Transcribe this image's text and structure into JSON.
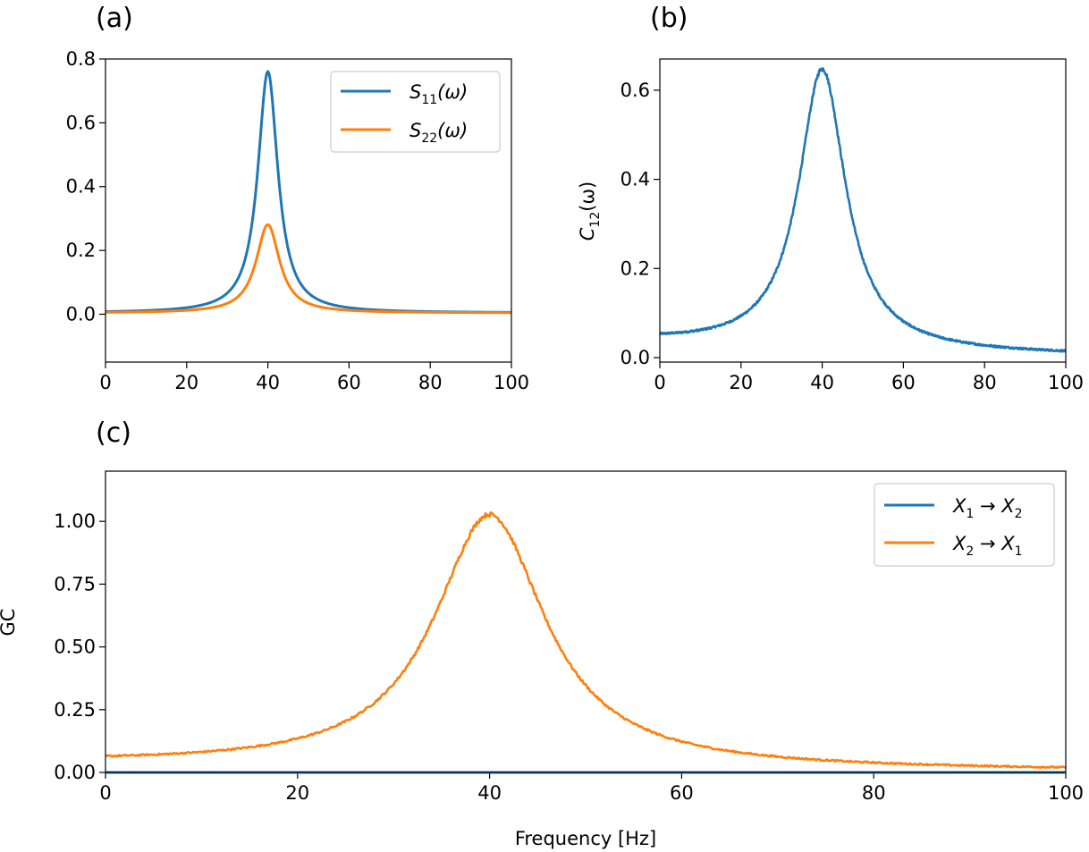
{
  "chart_data": [
    {
      "id": "a",
      "panel_label": "(a)",
      "type": "line",
      "xlim": [
        0,
        100
      ],
      "ylim": [
        -0.15,
        0.8
      ],
      "xticks": [
        0,
        20,
        40,
        60,
        80,
        100
      ],
      "yticks": [
        0.0,
        0.2,
        0.4,
        0.6,
        0.8
      ],
      "xtick_labels": [
        "0",
        "20",
        "40",
        "60",
        "80",
        "100"
      ],
      "ytick_labels": [
        "0.0",
        "0.2",
        "0.4",
        "0.6",
        "0.8"
      ],
      "xlabel": "",
      "ylabel": "",
      "legend": "top-right",
      "series": [
        {
          "name": "S11(ω)",
          "label_main": "S",
          "label_sub": "11",
          "label_tail": "(ω)",
          "color": "#1f77b4",
          "peak_x": 40,
          "peak": 0.757,
          "width": 3.0,
          "baseline": 0.004,
          "noise": 0
        },
        {
          "name": "S22(ω)",
          "label_main": "S",
          "label_sub": "22",
          "label_tail": "(ω)",
          "color": "#ff7f0e",
          "peak_x": 40,
          "peak": 0.277,
          "width": 3.5,
          "baseline": 0.004,
          "noise": 0
        }
      ]
    },
    {
      "id": "b",
      "panel_label": "(b)",
      "type": "line",
      "xlim": [
        0,
        100
      ],
      "ylim": [
        -0.01,
        0.67
      ],
      "xticks": [
        0,
        20,
        40,
        60,
        80,
        100
      ],
      "yticks": [
        0.0,
        0.2,
        0.4,
        0.6
      ],
      "xtick_labels": [
        "0",
        "20",
        "40",
        "60",
        "80",
        "100"
      ],
      "ytick_labels": [
        "0.0",
        "0.2",
        "0.4",
        "0.6"
      ],
      "xlabel": "",
      "ylabel": "C12(ω)",
      "ylabel_main": "C",
      "ylabel_sub": "12",
      "ylabel_tail": "(ω)",
      "series": [
        {
          "name": "C12(ω)",
          "color": "#1f77b4",
          "peak_x": 40,
          "peak": 0.63,
          "width": 7.0,
          "baseline": 0.0,
          "noise": 0.004
        }
      ]
    },
    {
      "id": "c",
      "panel_label": "(c)",
      "type": "line",
      "xlim": [
        0,
        100
      ],
      "ylim": [
        0.0,
        1.2
      ],
      "xticks": [
        0,
        20,
        40,
        60,
        80,
        100
      ],
      "yticks": [
        0.0,
        0.25,
        0.5,
        0.75,
        1.0
      ],
      "xtick_labels": [
        "0",
        "20",
        "40",
        "60",
        "80",
        "100"
      ],
      "ytick_labels": [
        "0.00",
        "0.25",
        "0.50",
        "0.75",
        "1.00"
      ],
      "xlabel": "Frequency [Hz]",
      "ylabel": "GC",
      "legend": "top-right",
      "series": [
        {
          "name": "X1 → X2",
          "label_a": "X",
          "label_a_sub": "1",
          "label_b": "X",
          "label_b_sub": "2",
          "color": "#1f77b4",
          "peak_x": 40,
          "peak": 0.0,
          "width": 7.0,
          "baseline": 0.0,
          "noise": 0
        },
        {
          "name": "X2 → X1",
          "label_a": "X",
          "label_a_sub": "2",
          "label_b": "X",
          "label_b_sub": "1",
          "color": "#ff7f0e",
          "peak_x": 40,
          "peak": 1.01,
          "width": 7.0,
          "baseline": 0.0,
          "noise": 0.006
        }
      ]
    }
  ]
}
